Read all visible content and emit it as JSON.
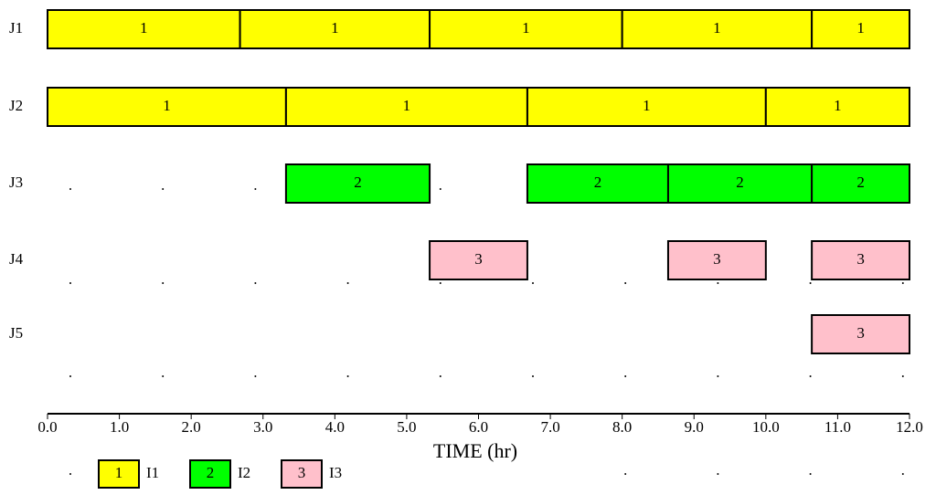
{
  "chart_data": {
    "type": "gantt",
    "xlabel": "TIME (hr)",
    "rows": [
      "J1",
      "J2",
      "J3",
      "J4",
      "J5"
    ],
    "xlim": [
      0,
      12
    ],
    "xticks": [
      {
        "value": 0,
        "label": "0.0"
      },
      {
        "value": 1,
        "label": "1.0"
      },
      {
        "value": 2,
        "label": "2.0"
      },
      {
        "value": 3,
        "label": "3.0"
      },
      {
        "value": 4,
        "label": "4.0"
      },
      {
        "value": 5,
        "label": "5.0"
      },
      {
        "value": 6,
        "label": "6.0"
      },
      {
        "value": 7,
        "label": "7.0"
      },
      {
        "value": 8,
        "label": "8.0"
      },
      {
        "value": 9,
        "label": "9.0"
      },
      {
        "value": 10,
        "label": "10.0"
      },
      {
        "value": 11,
        "label": "11.0"
      },
      {
        "value": 12,
        "label": "12.0"
      }
    ],
    "series": [
      {
        "name": "I1",
        "label": "1",
        "color": "#ffff00",
        "tasks": [
          {
            "row": "J1",
            "start": 0,
            "end": 2.68
          },
          {
            "row": "J1",
            "start": 2.68,
            "end": 5.32
          },
          {
            "row": "J1",
            "start": 5.32,
            "end": 8.0
          },
          {
            "row": "J1",
            "start": 8.0,
            "end": 10.64
          },
          {
            "row": "J1",
            "start": 10.64,
            "end": 12
          },
          {
            "row": "J2",
            "start": 0,
            "end": 3.32
          },
          {
            "row": "J2",
            "start": 3.32,
            "end": 6.68
          },
          {
            "row": "J2",
            "start": 6.68,
            "end": 10.0
          },
          {
            "row": "J2",
            "start": 10.0,
            "end": 12
          }
        ]
      },
      {
        "name": "I2",
        "label": "2",
        "color": "#00ff00",
        "tasks": [
          {
            "row": "J3",
            "start": 3.32,
            "end": 5.32
          },
          {
            "row": "J3",
            "start": 6.68,
            "end": 8.64
          },
          {
            "row": "J3",
            "start": 8.64,
            "end": 10.64
          },
          {
            "row": "J3",
            "start": 10.64,
            "end": 12
          }
        ]
      },
      {
        "name": "I3",
        "label": "3",
        "color": "#ffc0cb",
        "tasks": [
          {
            "row": "J4",
            "start": 5.32,
            "end": 6.68
          },
          {
            "row": "J4",
            "start": 8.64,
            "end": 10.0
          },
          {
            "row": "J4",
            "start": 10.64,
            "end": 12
          },
          {
            "row": "J5",
            "start": 10.64,
            "end": 12
          }
        ]
      }
    ]
  }
}
